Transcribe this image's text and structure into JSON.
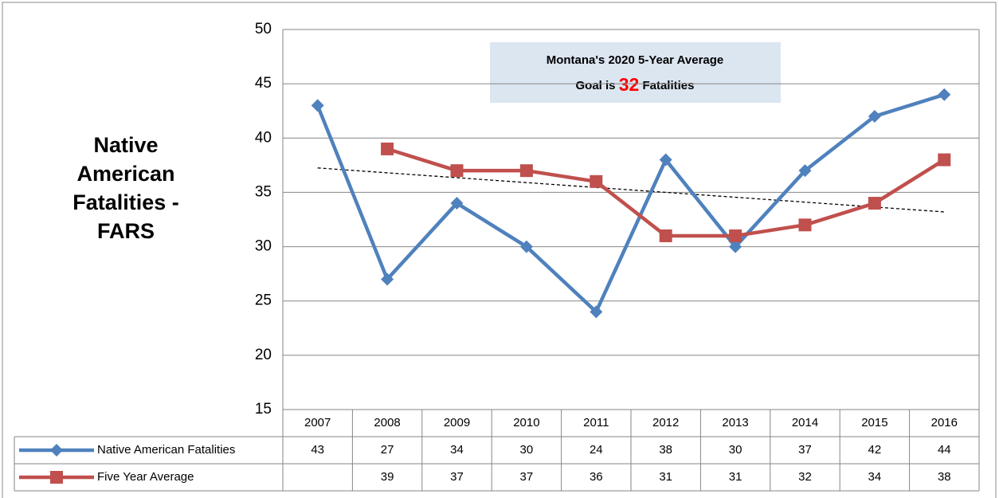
{
  "chart_data": {
    "type": "line",
    "ylabel": [
      "Native",
      "American",
      "Fatalities -",
      "FARS"
    ],
    "categories": [
      "2007",
      "2008",
      "2009",
      "2010",
      "2011",
      "2012",
      "2013",
      "2014",
      "2015",
      "2016"
    ],
    "series": [
      {
        "name": "Native American Fatalities",
        "color": "#4f81bd",
        "marker": "diamond",
        "values": [
          43,
          27,
          34,
          30,
          24,
          38,
          30,
          37,
          42,
          44
        ]
      },
      {
        "name": "Five Year Average",
        "color": "#c0504d",
        "marker": "square",
        "values": [
          null,
          39,
          37,
          37,
          36,
          31,
          31,
          32,
          34,
          38
        ]
      }
    ],
    "trendline": {
      "x": [
        "2007",
        "2016"
      ],
      "values": [
        37.25,
        33.2
      ]
    },
    "annotation": {
      "line1": "Montana's 2020 5-Year Average",
      "line2_before": "Goal is",
      "goal": 32,
      "line2_after": "Fatalities"
    },
    "ylim": [
      15,
      50
    ],
    "yticks": [
      15,
      20,
      25,
      30,
      35,
      40,
      45,
      50
    ],
    "grid": true,
    "data_table": true
  }
}
